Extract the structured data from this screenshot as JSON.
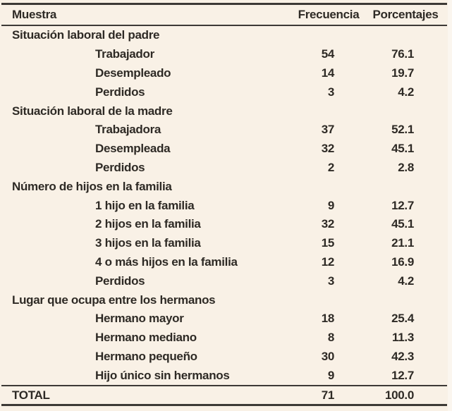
{
  "colors": {
    "background": "#f9f1e6",
    "text": "#2e2a25",
    "rule": "#3d3a36"
  },
  "table": {
    "headers": {
      "muestra": "Muestra",
      "frecuencia": "Frecuencia",
      "porcentajes": "Porcentajes"
    },
    "rows": [
      {
        "type": "section",
        "label": "Situación laboral del padre",
        "freq": "",
        "pct": ""
      },
      {
        "type": "item",
        "label": "Trabajador",
        "freq": "54",
        "pct": "76.1"
      },
      {
        "type": "item",
        "label": "Desempleado",
        "freq": "14",
        "pct": "19.7"
      },
      {
        "type": "item",
        "label": "Perdidos",
        "freq": "3",
        "pct": "4.2"
      },
      {
        "type": "section",
        "label": "Situación laboral de la madre",
        "freq": "",
        "pct": ""
      },
      {
        "type": "item",
        "label": "Trabajadora",
        "freq": "37",
        "pct": "52.1"
      },
      {
        "type": "item",
        "label": "Desempleada",
        "freq": "32",
        "pct": "45.1"
      },
      {
        "type": "item",
        "label": "Perdidos",
        "freq": "2",
        "pct": "2.8"
      },
      {
        "type": "section",
        "label": "Número de hijos en la familia",
        "freq": "",
        "pct": ""
      },
      {
        "type": "item",
        "label": "1 hijo en la familia",
        "freq": "9",
        "pct": "12.7"
      },
      {
        "type": "item",
        "label": "2 hijos en la familia",
        "freq": "32",
        "pct": "45.1"
      },
      {
        "type": "item",
        "label": "3 hijos en la familia",
        "freq": "15",
        "pct": "21.1"
      },
      {
        "type": "item",
        "label": "4 o más hijos en la familia",
        "freq": "12",
        "pct": "16.9"
      },
      {
        "type": "item",
        "label": "Perdidos",
        "freq": "3",
        "pct": "4.2"
      },
      {
        "type": "section",
        "label": "Lugar que ocupa entre los hermanos",
        "freq": "",
        "pct": ""
      },
      {
        "type": "item",
        "label": "Hermano mayor",
        "freq": "18",
        "pct": "25.4"
      },
      {
        "type": "item",
        "label": "Hermano mediano",
        "freq": "8",
        "pct": "11.3"
      },
      {
        "type": "item",
        "label": "Hermano pequeño",
        "freq": "30",
        "pct": "42.3"
      },
      {
        "type": "item",
        "label": "Hijo único sin hermanos",
        "freq": "9",
        "pct": "12.7"
      },
      {
        "type": "total",
        "label": "TOTAL",
        "freq": "71",
        "pct": "100.0"
      }
    ]
  }
}
